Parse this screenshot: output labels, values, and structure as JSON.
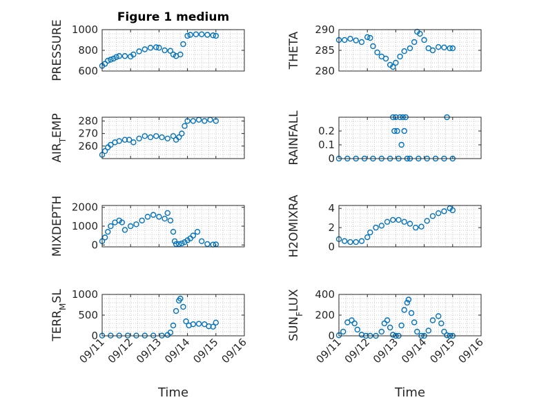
{
  "figure_title": "Figure 1 medium",
  "colors": {
    "series": "#0072BD",
    "axes": "#262626",
    "grid": "#c8c8c8"
  },
  "chart_data": [
    {
      "type": "scatter",
      "ylabel": "PRESSURE",
      "ylim": [
        600,
        1000
      ],
      "yticks": [
        "600",
        "800",
        "1000"
      ],
      "xlim": [
        0,
        5
      ],
      "xticks": [
        "09/11",
        "09/12",
        "09/13",
        "09/14",
        "09/15",
        "09/16"
      ],
      "show_xticklabels": false,
      "x": [
        0.0,
        0.1,
        0.2,
        0.3,
        0.4,
        0.5,
        0.6,
        0.8,
        1.0,
        1.1,
        1.3,
        1.5,
        1.7,
        1.9,
        2.0,
        2.2,
        2.4,
        2.5,
        2.6,
        2.75,
        2.85,
        3.0,
        3.1,
        3.3,
        3.5,
        3.7,
        3.9,
        4.0
      ],
      "y": [
        650,
        670,
        700,
        710,
        720,
        735,
        745,
        745,
        740,
        760,
        790,
        810,
        825,
        830,
        825,
        800,
        795,
        760,
        745,
        760,
        860,
        940,
        950,
        955,
        955,
        950,
        945,
        940
      ]
    },
    {
      "type": "scatter",
      "ylabel": "THETA",
      "ylim": [
        280,
        290
      ],
      "yticks": [
        "280",
        "285",
        "290"
      ],
      "xlim": [
        0,
        5
      ],
      "xticks": [
        "09/11",
        "09/12",
        "09/13",
        "09/14",
        "09/15",
        "09/16"
      ],
      "show_xticklabels": false,
      "x": [
        0.0,
        0.2,
        0.4,
        0.6,
        0.8,
        1.0,
        1.1,
        1.2,
        1.35,
        1.5,
        1.65,
        1.8,
        1.9,
        2.0,
        2.15,
        2.3,
        2.5,
        2.65,
        2.75,
        2.85,
        3.0,
        3.15,
        3.3,
        3.5,
        3.7,
        3.9,
        4.0
      ],
      "y": [
        287.5,
        287.5,
        287.8,
        287.4,
        287.0,
        288.2,
        288.0,
        286.0,
        284.5,
        283.5,
        283.0,
        281.5,
        281.0,
        282.0,
        283.5,
        284.8,
        285.5,
        287.0,
        289.5,
        289.0,
        287.5,
        285.5,
        285.0,
        285.8,
        285.7,
        285.5,
        285.5
      ]
    },
    {
      "type": "scatter",
      "ylabel": "AIR_TEMP",
      "ylim": [
        250,
        283
      ],
      "yticks": [
        "260",
        "270",
        "280"
      ],
      "xlim": [
        0,
        5
      ],
      "xticks": [
        "09/11",
        "09/12",
        "09/13",
        "09/14",
        "09/15",
        "09/16"
      ],
      "show_xticklabels": false,
      "x": [
        0.0,
        0.1,
        0.2,
        0.3,
        0.45,
        0.6,
        0.8,
        0.95,
        1.1,
        1.3,
        1.5,
        1.7,
        1.9,
        2.1,
        2.3,
        2.5,
        2.6,
        2.7,
        2.8,
        2.9,
        3.0,
        3.2,
        3.4,
        3.6,
        3.8,
        4.0
      ],
      "y": [
        253,
        256,
        259,
        261,
        263,
        264,
        265,
        265,
        263,
        266,
        268,
        267,
        268,
        267,
        266,
        268,
        265,
        267,
        270,
        276,
        280,
        280,
        281,
        280,
        281,
        280
      ]
    },
    {
      "type": "scatter",
      "ylabel": "RAINFALL",
      "ylim": [
        0,
        0.3
      ],
      "yticks": [
        "0",
        "0.1",
        "0.2"
      ],
      "xlim": [
        0,
        5
      ],
      "xticks": [
        "09/11",
        "09/12",
        "09/13",
        "09/14",
        "09/15",
        "09/16"
      ],
      "show_xticklabels": false,
      "x": [
        0.0,
        0.3,
        0.6,
        0.9,
        1.2,
        1.5,
        1.8,
        1.9,
        1.95,
        2.0,
        2.05,
        2.1,
        2.15,
        2.2,
        2.25,
        2.3,
        2.35,
        2.4,
        2.5,
        2.8,
        3.1,
        3.4,
        3.7,
        3.8,
        4.0
      ],
      "y": [
        0,
        0,
        0,
        0,
        0,
        0,
        0,
        0.3,
        0.2,
        0.3,
        0.2,
        0,
        0.3,
        0.1,
        0.3,
        0.2,
        0.3,
        0,
        0,
        0,
        0,
        0,
        0,
        0.3,
        0
      ]
    },
    {
      "type": "scatter",
      "ylabel": "MIXDEPTH",
      "ylim": [
        -100,
        2100
      ],
      "yticks": [
        "0",
        "1000",
        "2000"
      ],
      "xlim": [
        0,
        5
      ],
      "xticks": [
        "09/11",
        "09/12",
        "09/13",
        "09/14",
        "09/15",
        "09/16"
      ],
      "show_xticklabels": false,
      "x": [
        0.0,
        0.1,
        0.2,
        0.3,
        0.45,
        0.6,
        0.7,
        0.8,
        1.0,
        1.2,
        1.4,
        1.6,
        1.8,
        2.0,
        2.2,
        2.3,
        2.4,
        2.5,
        2.55,
        2.6,
        2.7,
        2.8,
        2.9,
        3.0,
        3.1,
        3.2,
        3.35,
        3.5,
        3.7,
        3.9,
        4.0
      ],
      "y": [
        200,
        400,
        700,
        1000,
        1200,
        1300,
        1200,
        800,
        1000,
        1100,
        1300,
        1500,
        1600,
        1500,
        1400,
        1700,
        1300,
        700,
        200,
        50,
        50,
        80,
        150,
        250,
        350,
        500,
        700,
        200,
        50,
        20,
        30
      ]
    },
    {
      "type": "scatter",
      "ylabel": "H2OMIXRA",
      "ylim": [
        0,
        4.3
      ],
      "yticks": [
        "0",
        "2",
        "4"
      ],
      "xlim": [
        0,
        5
      ],
      "xticks": [
        "09/11",
        "09/12",
        "09/13",
        "09/14",
        "09/15",
        "09/16"
      ],
      "show_xticklabels": false,
      "x": [
        0.0,
        0.2,
        0.4,
        0.6,
        0.8,
        1.0,
        1.1,
        1.3,
        1.5,
        1.7,
        1.9,
        2.1,
        2.3,
        2.5,
        2.7,
        2.9,
        3.1,
        3.3,
        3.5,
        3.7,
        3.9,
        4.0
      ],
      "y": [
        0.8,
        0.6,
        0.5,
        0.5,
        0.6,
        1.0,
        1.5,
        2.0,
        2.2,
        2.6,
        2.8,
        2.8,
        2.6,
        2.4,
        2.0,
        2.1,
        2.7,
        3.2,
        3.5,
        3.7,
        4.0,
        3.8
      ]
    },
    {
      "type": "scatter",
      "ylabel": "TERR_MSL",
      "ylim": [
        0,
        1000
      ],
      "yticks": [
        "0",
        "500",
        "1000"
      ],
      "xlim": [
        0,
        5
      ],
      "xticks": [
        "09/11",
        "09/12",
        "09/13",
        "09/14",
        "09/15",
        "09/16"
      ],
      "show_xticklabels": true,
      "x": [
        0.0,
        0.3,
        0.6,
        0.9,
        1.2,
        1.5,
        1.8,
        2.1,
        2.3,
        2.4,
        2.5,
        2.6,
        2.7,
        2.75,
        2.85,
        2.95,
        3.05,
        3.2,
        3.4,
        3.6,
        3.75,
        3.9,
        4.0
      ],
      "y": [
        5,
        5,
        5,
        5,
        5,
        5,
        5,
        5,
        20,
        80,
        250,
        600,
        850,
        900,
        700,
        350,
        250,
        280,
        290,
        280,
        230,
        220,
        320
      ]
    },
    {
      "type": "scatter",
      "ylabel": "SUN_FLUX",
      "ylim": [
        0,
        400
      ],
      "yticks": [
        "0",
        "200",
        "400"
      ],
      "xlim": [
        0,
        5
      ],
      "xticks": [
        "09/11",
        "09/12",
        "09/13",
        "09/14",
        "09/15",
        "09/16"
      ],
      "show_xticklabels": true,
      "x": [
        0.0,
        0.15,
        0.3,
        0.45,
        0.55,
        0.65,
        0.8,
        0.95,
        1.1,
        1.3,
        1.5,
        1.6,
        1.7,
        1.8,
        1.9,
        2.0,
        2.1,
        2.2,
        2.3,
        2.4,
        2.45,
        2.55,
        2.65,
        2.75,
        2.9,
        3.0,
        3.15,
        3.3,
        3.5,
        3.6,
        3.7,
        3.8,
        3.9,
        4.0
      ],
      "y": [
        5,
        40,
        130,
        150,
        120,
        60,
        10,
        0,
        0,
        0,
        40,
        120,
        150,
        80,
        10,
        0,
        0,
        100,
        250,
        320,
        350,
        220,
        130,
        40,
        0,
        0,
        50,
        150,
        190,
        120,
        40,
        5,
        0,
        0
      ]
    }
  ],
  "xlabel": "Time"
}
